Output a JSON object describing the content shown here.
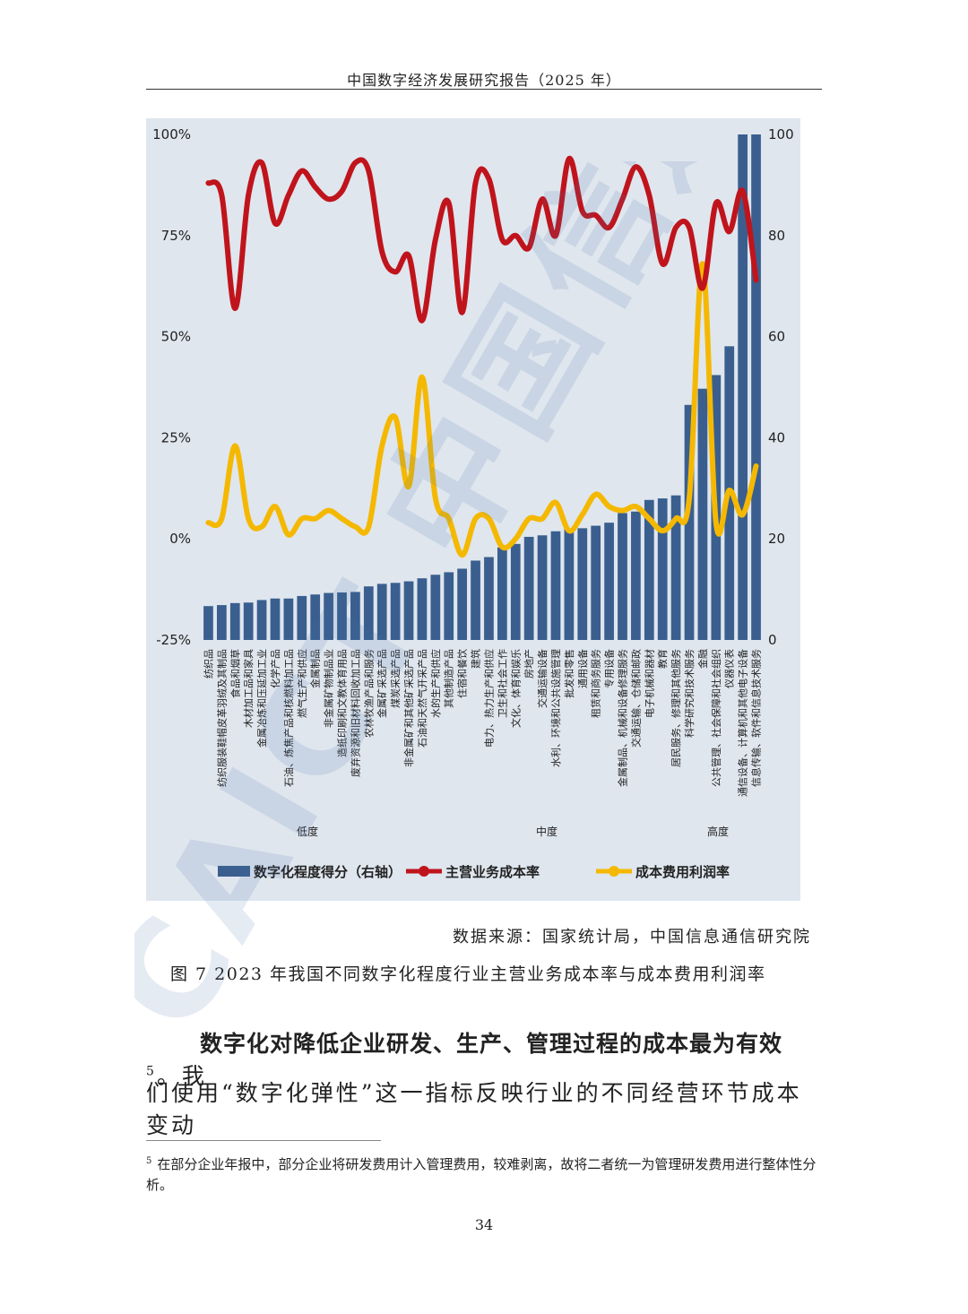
{
  "header": {
    "title": "中国数字经济发展研究报告（2025 年）"
  },
  "chart_data": {
    "type": "bar",
    "categories": [
      "纺织品",
      "纺织服装鞋帽皮革羽绒及其制品",
      "食品和烟草",
      "木材加工品和家具",
      "金属冶炼和压延加工业",
      "化学产品",
      "石油、炼焦产品和核燃料加工品",
      "燃气生产和供应",
      "金属制品",
      "非金属矿物制品业",
      "造纸印刷和文教体育用品",
      "废弃资源和旧材料回收加工品",
      "农林牧渔产品和服务",
      "金属矿采选产品",
      "煤炭采选产品",
      "非金属矿和其他矿采选产品",
      "石油和天然气开采产品",
      "水的生产和供应",
      "其他制造产品",
      "住宿和餐饮",
      "建筑",
      "电力、热力生产和供应",
      "卫生和社会工作",
      "文化、体育和娱乐",
      "房地产",
      "交通运输设备",
      "水利、环境和公共设施管理",
      "批发和零售",
      "通用设备",
      "租赁和商务服务",
      "专用设备",
      "金属制品、机械和设备修理服务",
      "交通运输、仓储和邮政",
      "电子机械和器材",
      "教育",
      "居民服务、修理和其他服务",
      "科学研究和技术服务",
      "金融",
      "公共管理、社会保障和社会组织",
      "仪器仪表",
      "通信设备、计算机和其他电子设备",
      "信息传输、软件和信息技术服务"
    ],
    "series": [
      {
        "name": "数字化程度得分（右轴）",
        "axis": "right",
        "type": "bar",
        "color": "#3a5f8f",
        "values": [
          6.7,
          6.9,
          7.3,
          7.4,
          7.9,
          8.2,
          8.2,
          8.7,
          9.0,
          9.3,
          9.4,
          9.5,
          10.6,
          11.1,
          11.3,
          11.6,
          12.2,
          12.9,
          13.4,
          14.1,
          15.7,
          16.4,
          18.3,
          19.0,
          20.4,
          20.7,
          21.5,
          22.0,
          22.1,
          22.6,
          23.2,
          25.1,
          25.4,
          27.7,
          28.0,
          28.6,
          46.5,
          49.7,
          52.4,
          58.1,
          100,
          100
        ]
      },
      {
        "name": "主营业务成本率",
        "axis": "left",
        "type": "line",
        "color": "#c0141c",
        "values": [
          88,
          85,
          57,
          85,
          93,
          78,
          85,
          91,
          87,
          84,
          86,
          93,
          91,
          71,
          66,
          70,
          54,
          74,
          83,
          56,
          88,
          89,
          74,
          75,
          72,
          84,
          75,
          94,
          81,
          80,
          77,
          84,
          92,
          85,
          68,
          77,
          77,
          62,
          83,
          76,
          86,
          64
        ]
      },
      {
        "name": "成本费用利润率",
        "axis": "left",
        "type": "line",
        "color": "#f5b800",
        "values": [
          4,
          5,
          23,
          5,
          3,
          8,
          1,
          5,
          5,
          7,
          5,
          3,
          3,
          23,
          30,
          13,
          40,
          10,
          5,
          -4,
          5,
          5,
          -2,
          0,
          5,
          5,
          9,
          2,
          6,
          11,
          8,
          7,
          8,
          5,
          2,
          5,
          10,
          68,
          4,
          12,
          6,
          18
        ]
      }
    ],
    "left_axis": {
      "ticks": [
        "100%",
        "75%",
        "50%",
        "25%",
        "0%",
        "-25%"
      ],
      "ylim": [
        -25,
        100
      ]
    },
    "right_axis": {
      "ticks": [
        "100",
        "80",
        "60",
        "40",
        "20",
        "0"
      ],
      "ylim": [
        0,
        100
      ]
    },
    "groups": [
      {
        "label": "低度"
      },
      {
        "label": "中度"
      },
      {
        "label": "高度"
      }
    ],
    "legend_placement": "bottom",
    "colors": {
      "panel": "#dfe6ee",
      "bar": "#3a5f8f",
      "cost": "#c0141c",
      "profit": "#f5b800"
    }
  },
  "source": "数据来源：国家统计局，中国信息通信研究院",
  "caption": "图 7 2023 年我国不同数字化程度行业主营业务成本率与成本费用利润率",
  "body": {
    "para1_lead": "数字化对降低企业研发、生产、管理过程的成本最为有效",
    "para1_sup": "5",
    "para1_tail": "。我",
    "para2": "们使用“数字化弹性”这一指标反映行业的不同经营环节成本变动"
  },
  "footnote": {
    "mark": "5",
    "text": "在部分企业年报中，部分企业将研发费用计入管理费用，较难剥离，故将二者统一为管理研发费用进行整体性分析。"
  },
  "watermark": "CAICT 中国信通院",
  "page_number": "34"
}
